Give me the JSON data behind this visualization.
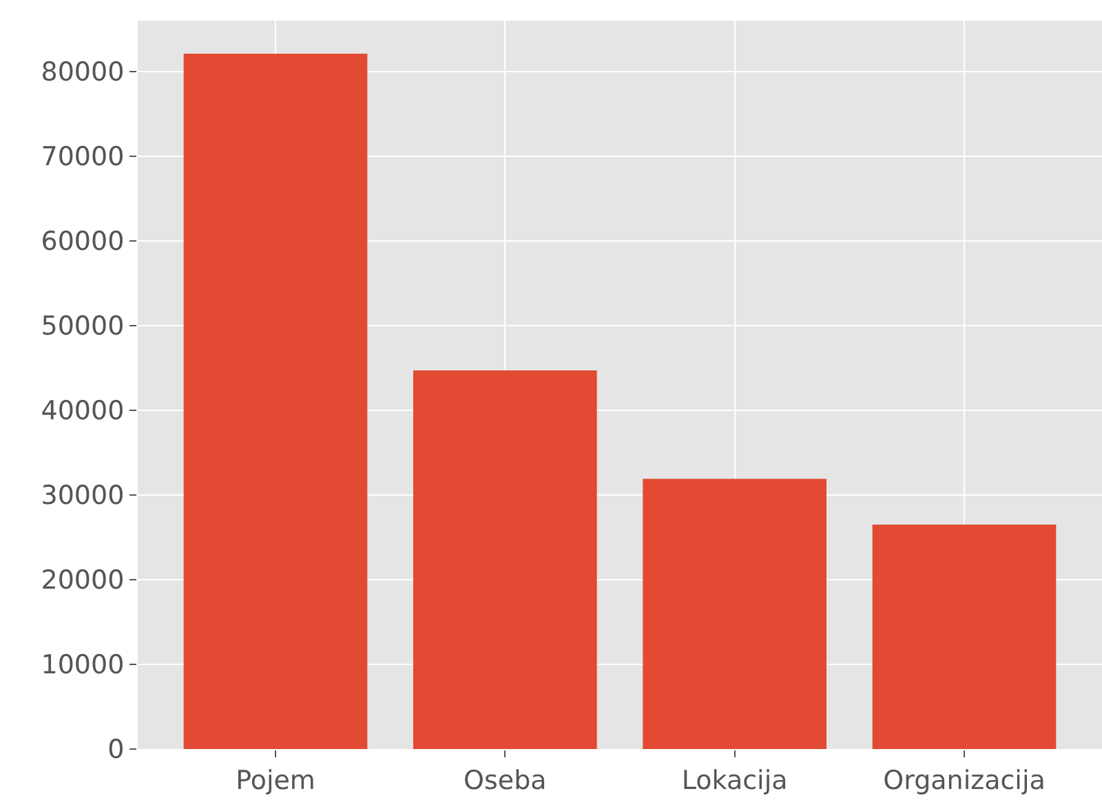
{
  "chart_data": {
    "type": "bar",
    "categories": [
      "Pojem",
      "Oseba",
      "Lokacija",
      "Organizacija"
    ],
    "values": [
      82100,
      44700,
      31900,
      26500
    ],
    "color": "#e24a33",
    "ylim": [
      0,
      86000
    ],
    "yticks": [
      0,
      10000,
      20000,
      30000,
      40000,
      50000,
      60000,
      70000,
      80000
    ],
    "grid": true
  }
}
